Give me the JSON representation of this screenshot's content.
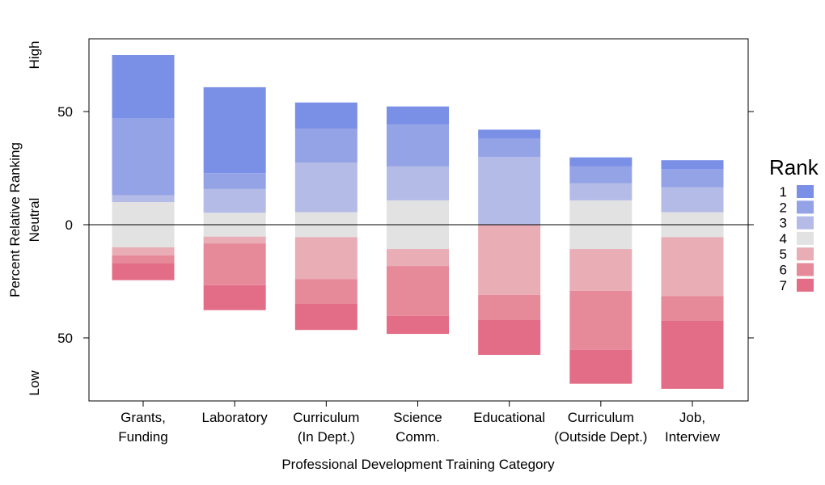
{
  "chart_data": {
    "type": "bar",
    "subtype": "diverging-stacked",
    "title": "",
    "xlabel": "Professional Development Training Category",
    "ylabel": "Percent Relative Ranking",
    "ylim": [
      -78,
      78
    ],
    "y_ticks": [
      {
        "value": 50,
        "label": "50"
      },
      {
        "value": 0,
        "label": "0"
      },
      {
        "value": -50,
        "label": "50"
      }
    ],
    "y_side_labels": {
      "high": "High",
      "neutral": "Neutral",
      "low": "Low"
    },
    "grid": false,
    "legend_position": "right",
    "legend_title": "Rank",
    "categories": [
      [
        "Grants,",
        "Funding"
      ],
      [
        "Laboratory"
      ],
      [
        "Curriculum",
        "(In Dept.)"
      ],
      [
        "Science",
        "Comm."
      ],
      [
        "Educational"
      ],
      [
        "Curriculum",
        "(Outside Dept.)"
      ],
      [
        "Job,",
        "Interview"
      ]
    ],
    "series": [
      {
        "name": "1",
        "color": "#7a8fe6",
        "values": [
          28,
          38,
          11.5,
          8,
          4,
          4,
          4
        ]
      },
      {
        "name": "2",
        "color": "#94a3e6",
        "values": [
          34,
          7,
          15,
          18.5,
          8,
          7.5,
          8
        ]
      },
      {
        "name": "3",
        "color": "#b3bbe6",
        "values": [
          3,
          10.5,
          22,
          15,
          30,
          7.5,
          11
        ]
      },
      {
        "name": "4",
        "color": "#e2e2e2",
        "values": [
          20,
          10.5,
          11,
          21.5,
          0,
          21.5,
          11
        ]
      },
      {
        "name": "5",
        "color": "#e8adb5",
        "values": [
          3.5,
          3,
          18.5,
          7.5,
          31,
          18.5,
          26
        ]
      },
      {
        "name": "6",
        "color": "#e68a9a",
        "values": [
          3.5,
          18.5,
          11,
          22,
          11,
          26,
          11
        ]
      },
      {
        "name": "7",
        "color": "#e36d87",
        "values": [
          7.5,
          11,
          11.5,
          8,
          15.5,
          15,
          30
        ]
      }
    ]
  }
}
